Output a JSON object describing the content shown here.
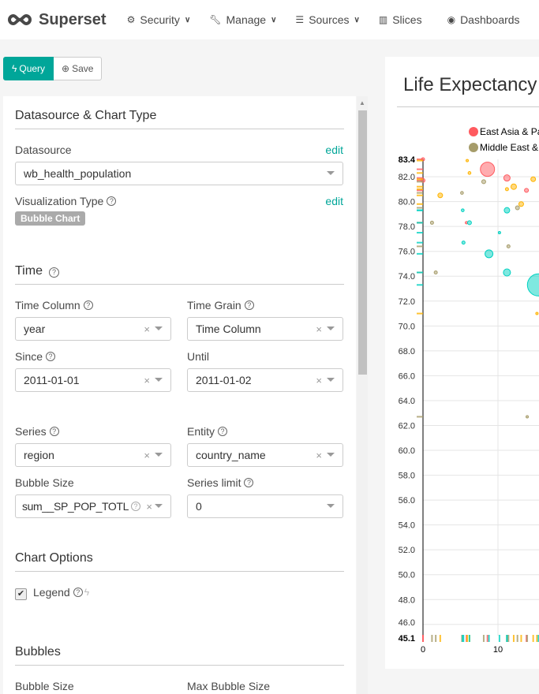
{
  "nav": {
    "brand": "Superset",
    "items": [
      {
        "label": "Security",
        "icon": "cogs-icon",
        "dropdown": true
      },
      {
        "label": "Manage",
        "icon": "wrench-icon",
        "dropdown": true
      },
      {
        "label": "Sources",
        "icon": "database-icon",
        "dropdown": true
      },
      {
        "label": "Slices",
        "icon": "bar-chart-icon",
        "dropdown": false
      },
      {
        "label": "Dashboards",
        "icon": "dashboard-icon",
        "dropdown": false
      }
    ]
  },
  "toolbar": {
    "query_label": "Query",
    "save_label": "Save"
  },
  "controls": {
    "datasource_section": "Datasource & Chart Type",
    "datasource_label": "Datasource",
    "datasource_edit": "edit",
    "datasource_value": "wb_health_population",
    "viz_label": "Visualization Type",
    "viz_edit": "edit",
    "viz_value": "Bubble Chart",
    "time_section": "Time",
    "time_column_label": "Time Column",
    "time_column_value": "year",
    "time_grain_label": "Time Grain",
    "time_grain_value": "Time Column",
    "since_label": "Since",
    "since_value": "2011-01-01",
    "until_label": "Until",
    "until_value": "2011-01-02",
    "series_label": "Series",
    "series_value": "region",
    "entity_label": "Entity",
    "entity_value": "country_name",
    "bubble_size_label": "Bubble Size",
    "bubble_size_value": "sum__SP_POP_TOTL",
    "series_limit_label": "Series limit",
    "series_limit_value": "0",
    "chart_options_section": "Chart Options",
    "legend_label": "Legend",
    "legend_checked": true,
    "bubbles_section": "Bubbles",
    "bubbles_size_label": "Bubble Size",
    "max_bubble_label": "Max Bubble Size"
  },
  "chart_data": {
    "type": "scatter",
    "title": "Life Expectancy",
    "legend": [
      {
        "name": "East Asia & Pa",
        "color": "#ff5a5f"
      },
      {
        "name": "Middle East &",
        "color": "#a69c6a"
      }
    ],
    "colors": {
      "red": "#ff5a5f",
      "olive": "#a69c6a",
      "yellow": "#ffb400",
      "teal": "#00d1c1"
    },
    "ylim": [
      45.1,
      83.4
    ],
    "yticks": [
      "46.0",
      "48.0",
      "50.0",
      "52.0",
      "54.0",
      "56.0",
      "58.0",
      "60.0",
      "62.0",
      "64.0",
      "66.0",
      "68.0",
      "70.0",
      "72.0",
      "74.0",
      "76.0",
      "78.0",
      "80.0",
      "82.0"
    ],
    "xticks": [
      "0",
      "10"
    ],
    "xmin": 0,
    "ymin_label": "45.1",
    "ymax_label": "83.4",
    "points": [
      {
        "x": 8.6,
        "y": 82.6,
        "s": 9,
        "c": "red"
      },
      {
        "x": 11.2,
        "y": 81.9,
        "s": 4,
        "c": "red"
      },
      {
        "x": 13.8,
        "y": 80.9,
        "s": 2.5,
        "c": "red"
      },
      {
        "x": 5.8,
        "y": 78.3,
        "s": 1.5,
        "c": "red"
      },
      {
        "x": 0,
        "y": 83.4,
        "s": 2,
        "c": "red"
      },
      {
        "x": 0,
        "y": 81.7,
        "s": 2.5,
        "c": "red"
      },
      {
        "x": 12.1,
        "y": 81.2,
        "s": 3.5,
        "c": "yellow"
      },
      {
        "x": 11.2,
        "y": 81.0,
        "s": 2,
        "c": "yellow"
      },
      {
        "x": 14.7,
        "y": 81.8,
        "s": 3,
        "c": "yellow"
      },
      {
        "x": 6.2,
        "y": 82.3,
        "s": 1.8,
        "c": "yellow"
      },
      {
        "x": 5.9,
        "y": 83.3,
        "s": 1.5,
        "c": "yellow"
      },
      {
        "x": 2.3,
        "y": 80.5,
        "s": 3,
        "c": "yellow"
      },
      {
        "x": 13.1,
        "y": 79.8,
        "s": 3,
        "c": "yellow"
      },
      {
        "x": 15.2,
        "y": 71.0,
        "s": 1.5,
        "c": "yellow"
      },
      {
        "x": 8.1,
        "y": 81.6,
        "s": 2.5,
        "c": "olive"
      },
      {
        "x": 5.2,
        "y": 80.7,
        "s": 1.8,
        "c": "olive"
      },
      {
        "x": 12.6,
        "y": 79.5,
        "s": 2.5,
        "c": "olive"
      },
      {
        "x": 1.2,
        "y": 78.3,
        "s": 2,
        "c": "olive"
      },
      {
        "x": 11.4,
        "y": 76.4,
        "s": 2,
        "c": "olive"
      },
      {
        "x": 1.7,
        "y": 74.3,
        "s": 2,
        "c": "olive"
      },
      {
        "x": 13.9,
        "y": 62.7,
        "s": 1.5,
        "c": "olive"
      },
      {
        "x": 5.3,
        "y": 79.3,
        "s": 1.8,
        "c": "teal"
      },
      {
        "x": 11.2,
        "y": 79.3,
        "s": 3.5,
        "c": "teal"
      },
      {
        "x": 6.2,
        "y": 78.3,
        "s": 2.5,
        "c": "teal"
      },
      {
        "x": 10.2,
        "y": 77.5,
        "s": 1.5,
        "c": "teal"
      },
      {
        "x": 5.4,
        "y": 76.7,
        "s": 2,
        "c": "teal"
      },
      {
        "x": 8.8,
        "y": 75.8,
        "s": 5,
        "c": "teal"
      },
      {
        "x": 11.2,
        "y": 74.3,
        "s": 4.5,
        "c": "teal"
      },
      {
        "x": 15.4,
        "y": 73.3,
        "s": 14,
        "c": "teal"
      }
    ]
  }
}
